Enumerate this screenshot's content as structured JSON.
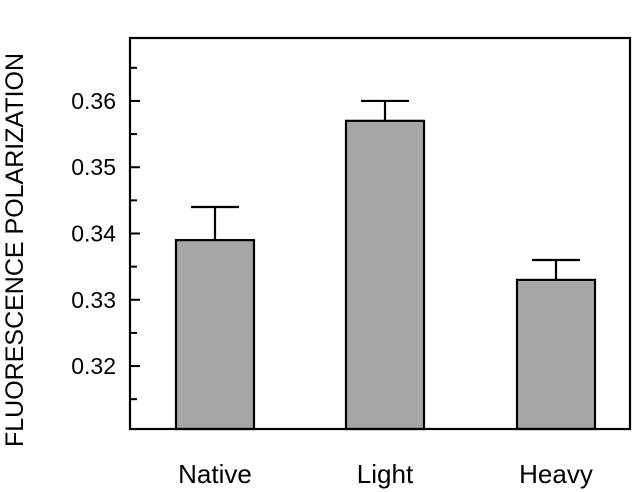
{
  "chart_data": {
    "type": "bar",
    "categories": [
      "Native",
      "Light",
      "Heavy"
    ],
    "values": [
      0.339,
      0.357,
      0.333
    ],
    "error_upper": [
      0.344,
      0.36,
      0.336
    ],
    "ylabel": "FLUORESCENCE POLARIZATION",
    "yticks": [
      "0.32",
      "0.33",
      "0.34",
      "0.35",
      "0.36"
    ],
    "ylim": [
      0.3105,
      0.3695
    ],
    "grid": false,
    "colors": {
      "bar_fill": "#a6a6a6",
      "bar_stroke": "#000000",
      "axis": "#000000"
    }
  }
}
